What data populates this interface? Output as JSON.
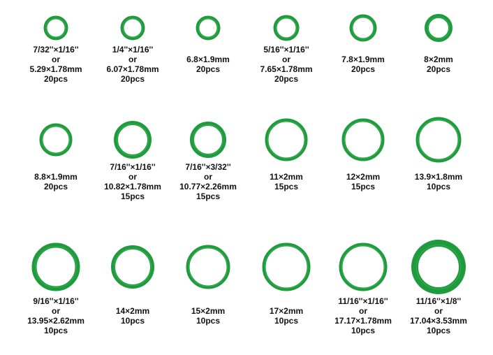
{
  "items": [
    {
      "lines": [
        "7/32''×1/16''",
        "or",
        "5.29×1.78mm",
        "20pcs"
      ]
    },
    {
      "lines": [
        "1/4''×1/16''",
        "or",
        "6.07×1.78mm",
        "20pcs"
      ]
    },
    {
      "lines": [
        "6.8×1.9mm",
        "20pcs"
      ]
    },
    {
      "lines": [
        "5/16''×1/16''",
        "or",
        "7.65×1.78mm",
        "20pcs"
      ]
    },
    {
      "lines": [
        "7.8×1.9mm",
        "20pcs"
      ]
    },
    {
      "lines": [
        "8×2mm",
        "20pcs"
      ]
    },
    {
      "lines": [
        "8.8×1.9mm",
        "20pcs"
      ]
    },
    {
      "lines": [
        "7/16''×1/16''",
        "or",
        "10.82×1.78mm",
        "15pcs"
      ]
    },
    {
      "lines": [
        "7/16''×3/32''",
        "or",
        "10.77×2.26mm",
        "15pcs"
      ]
    },
    {
      "lines": [
        "11×2mm",
        "15pcs"
      ]
    },
    {
      "lines": [
        "12×2mm",
        "15pcs"
      ]
    },
    {
      "lines": [
        "13.9×1.8mm",
        "10pcs"
      ]
    },
    {
      "lines": [
        "9/16''×1/16''",
        "or",
        "13.95×2.62mm",
        "10pcs"
      ]
    },
    {
      "lines": [
        "14×2mm",
        "10pcs"
      ]
    },
    {
      "lines": [
        "15×2mm",
        "10pcs"
      ]
    },
    {
      "lines": [
        "17×2mm",
        "10pcs"
      ]
    },
    {
      "lines": [
        "11/16''×1/16''",
        "or",
        "17.17×1.78mm",
        "10pcs"
      ]
    },
    {
      "lines": [
        "11/16''×1/8''",
        "or",
        "17.04×3.53mm",
        "10pcs"
      ]
    }
  ]
}
